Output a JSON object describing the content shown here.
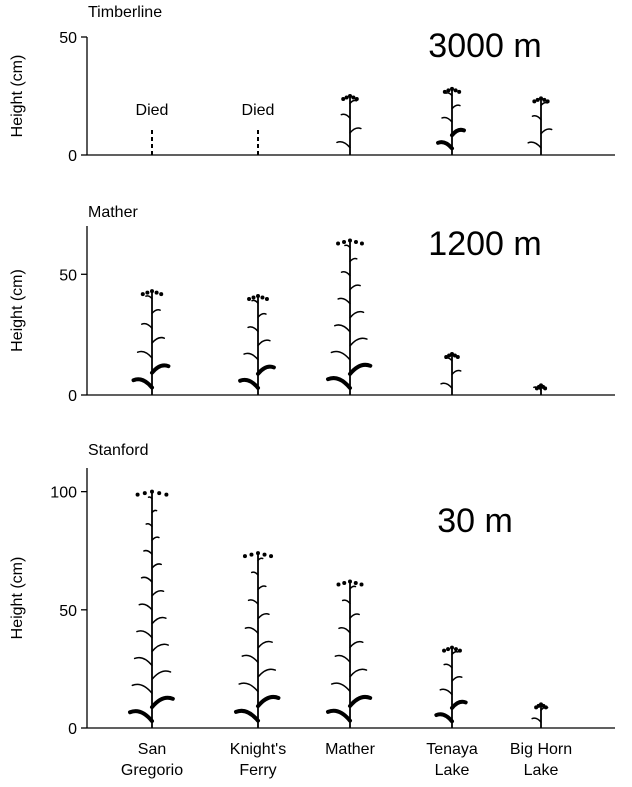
{
  "chart_data": [
    {
      "type": "pictogram",
      "title": "Timberline",
      "annotation": "3000 m",
      "ylabel": "Height (cm)",
      "values": [
        null,
        null,
        25,
        28,
        24
      ],
      "value_labels": [
        "Died",
        "Died",
        null,
        null,
        null
      ],
      "ylim": [
        0,
        50
      ],
      "yticks": [
        0,
        50
      ],
      "color": "#000000"
    },
    {
      "type": "pictogram",
      "title": "Mather",
      "annotation": "1200 m",
      "ylabel": "Height (cm)",
      "values": [
        43,
        41,
        64,
        17,
        4
      ],
      "ylim": [
        0,
        70
      ],
      "yticks": [
        0,
        50
      ],
      "color": "#000000"
    },
    {
      "type": "pictogram",
      "title": "Stanford",
      "annotation": "30 m",
      "ylabel": "Height (cm)",
      "categories": [
        [
          "San",
          "Gregorio"
        ],
        [
          "Knight's",
          "Ferry"
        ],
        [
          "Mather"
        ],
        [
          "Tenaya",
          "Lake"
        ],
        [
          "Big Horn",
          "Lake"
        ]
      ],
      "values": [
        100,
        74,
        62,
        34,
        10
      ],
      "ylim": [
        0,
        110
      ],
      "yticks": [
        0,
        50,
        100
      ],
      "color": "#000000"
    }
  ]
}
